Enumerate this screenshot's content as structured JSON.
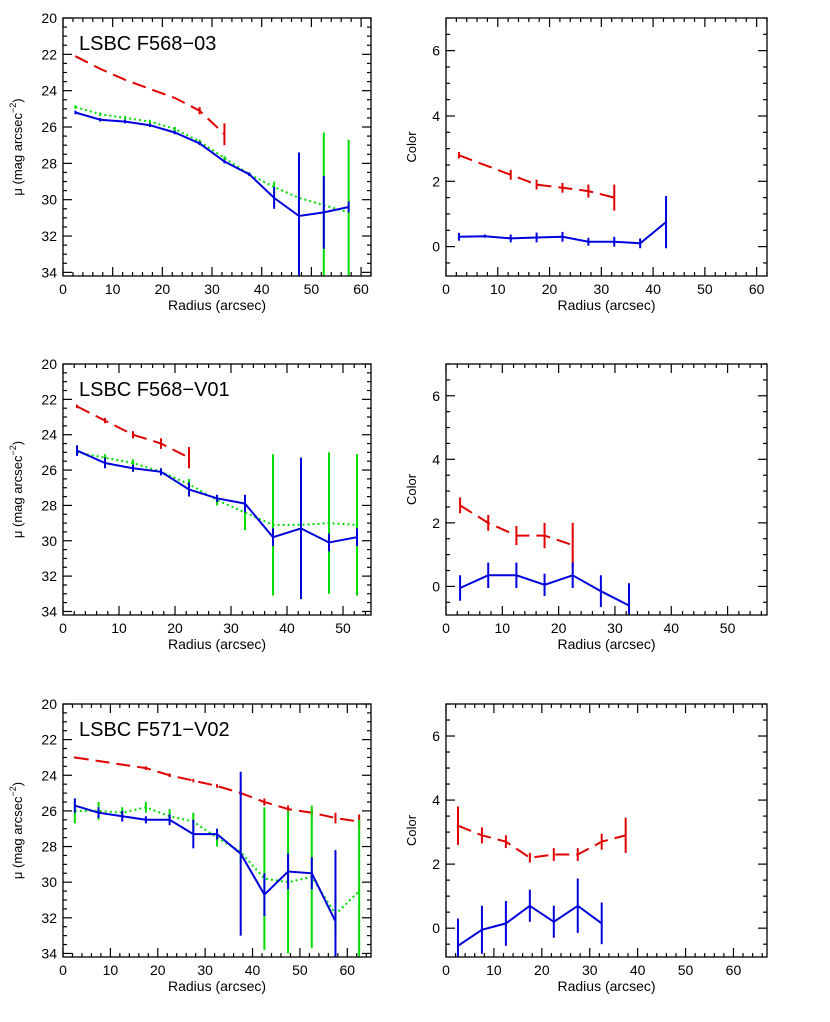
{
  "colors": {
    "red": "#e00000",
    "green": "#00dd00",
    "blue": "#0000dd",
    "axis": "#000000"
  },
  "chart_data": [
    {
      "type": "line",
      "kind": "sb",
      "title": "LSBC F568−03",
      "xlabel": "Radius (arcsec)",
      "ylabel": "μ (mag arcsec",
      "ylabel_sup": "−2",
      "ylabel_end": ")",
      "xlim": [
        0,
        62
      ],
      "ylim": [
        34.2,
        20
      ],
      "xticks": [
        0,
        10,
        20,
        30,
        40,
        50,
        60
      ],
      "yticks": [
        20,
        22,
        24,
        26,
        28,
        30,
        32,
        34
      ],
      "series": [
        {
          "color": "red",
          "style": "dash",
          "x": [
            2.5,
            7.5,
            12.5,
            17.5,
            22.5,
            27.5,
            32.5
          ],
          "y": [
            22.1,
            22.8,
            23.4,
            23.9,
            24.4,
            25.1,
            26.4
          ],
          "err": [
            0,
            0,
            0,
            0,
            0,
            0.2,
            0.6
          ]
        },
        {
          "color": "green",
          "style": "dot",
          "x": [
            2.5,
            7.5,
            12.5,
            17.5,
            22.5,
            27.5,
            32.5,
            37.5,
            42.5,
            47.5,
            52.5,
            57.5
          ],
          "y": [
            24.9,
            25.3,
            25.5,
            25.7,
            26.1,
            26.8,
            27.7,
            28.6,
            29.3,
            29.9,
            30.3,
            30.7
          ],
          "err": [
            0.1,
            0.1,
            0.1,
            0.1,
            0.1,
            0.1,
            0.1,
            0.1,
            0.3,
            0.5,
            4,
            4
          ]
        },
        {
          "color": "blue",
          "style": "solid",
          "x": [
            2.5,
            7.5,
            12.5,
            17.5,
            22.5,
            27.5,
            32.5,
            37.5,
            42.5,
            47.5,
            52.5,
            57.5
          ],
          "y": [
            25.2,
            25.6,
            25.7,
            25.9,
            26.3,
            26.9,
            27.9,
            28.6,
            29.9,
            30.9,
            30.7,
            30.4
          ],
          "err": [
            0.1,
            0.1,
            0.1,
            0.1,
            0.1,
            0.1,
            0.1,
            0.1,
            0.6,
            3.5,
            2,
            0.3
          ]
        }
      ]
    },
    {
      "type": "line",
      "kind": "color",
      "title": "",
      "xlabel": "Radius (arcsec)",
      "ylabel": "Color",
      "xlim": [
        0,
        62
      ],
      "ylim": [
        -0.9,
        7
      ],
      "xticks": [
        0,
        10,
        20,
        30,
        40,
        50,
        60
      ],
      "yticks": [
        0,
        2,
        4,
        6
      ],
      "series": [
        {
          "color": "red",
          "style": "dash",
          "x": [
            2.5,
            12.5,
            17.5,
            22.5,
            27.5,
            32.5
          ],
          "y": [
            2.8,
            2.2,
            1.9,
            1.8,
            1.7,
            1.5
          ],
          "err": [
            0.1,
            0.15,
            0.15,
            0.15,
            0.2,
            0.4
          ]
        },
        {
          "color": "blue",
          "style": "solid",
          "x": [
            2.5,
            7.5,
            12.5,
            17.5,
            22.5,
            27.5,
            32.5,
            37.5,
            42.5
          ],
          "y": [
            0.3,
            0.32,
            0.25,
            0.28,
            0.3,
            0.15,
            0.15,
            0.1,
            0.75
          ],
          "err": [
            0.12,
            0.05,
            0.12,
            0.15,
            0.15,
            0.12,
            0.15,
            0.15,
            0.8
          ]
        }
      ]
    },
    {
      "type": "line",
      "kind": "sb",
      "title": "LSBC F568−V01",
      "xlabel": "Radius (arcsec)",
      "ylabel": "μ (mag arcsec",
      "ylabel_sup": "−2",
      "ylabel_end": ")",
      "xlim": [
        0,
        55
      ],
      "ylim": [
        34.2,
        20
      ],
      "xticks": [
        0,
        10,
        20,
        30,
        40,
        50
      ],
      "yticks": [
        20,
        22,
        24,
        26,
        28,
        30,
        32,
        34
      ],
      "series": [
        {
          "color": "red",
          "style": "dash",
          "x": [
            2.5,
            7.5,
            12.5,
            17.5,
            22.5
          ],
          "y": [
            22.4,
            23.2,
            24.0,
            24.5,
            25.3
          ],
          "err": [
            0.1,
            0.15,
            0.2,
            0.3,
            0.6
          ]
        },
        {
          "color": "green",
          "style": "dot",
          "x": [
            2.5,
            7.5,
            12.5,
            17.5,
            22.5,
            27.5,
            32.5,
            37.5,
            42.5,
            47.5,
            52.5
          ],
          "y": [
            25.0,
            25.3,
            25.6,
            26.1,
            26.8,
            27.7,
            28.4,
            29.1,
            29.1,
            29.0,
            29.1
          ],
          "err": [
            0.2,
            0.2,
            0.2,
            0.2,
            0.3,
            0.3,
            1,
            4,
            0.4,
            4,
            4
          ]
        },
        {
          "color": "blue",
          "style": "solid",
          "x": [
            2.5,
            7.5,
            12.5,
            17.5,
            22.5,
            27.5,
            32.5,
            37.5,
            42.5,
            47.5,
            52.5
          ],
          "y": [
            24.9,
            25.6,
            25.9,
            26.1,
            27.1,
            27.6,
            27.9,
            29.8,
            29.3,
            30.1,
            29.8
          ],
          "err": [
            0.3,
            0.3,
            0.2,
            0.2,
            0.4,
            0.2,
            0.5,
            0.5,
            4,
            0.5,
            0.5
          ]
        }
      ]
    },
    {
      "type": "line",
      "kind": "color",
      "title": "",
      "xlabel": "Radius (arcsec)",
      "ylabel": "Color",
      "xlim": [
        0,
        57
      ],
      "ylim": [
        -0.9,
        7
      ],
      "xticks": [
        0,
        10,
        20,
        30,
        40,
        50
      ],
      "yticks": [
        0,
        2,
        4,
        6
      ],
      "series": [
        {
          "color": "red",
          "style": "dash",
          "x": [
            2.5,
            7.5,
            12.5,
            17.5,
            22.5
          ],
          "y": [
            2.55,
            2.0,
            1.6,
            1.6,
            1.3
          ],
          "err": [
            0.25,
            0.25,
            0.3,
            0.4,
            0.7
          ]
        },
        {
          "color": "blue",
          "style": "solid",
          "x": [
            2.5,
            7.5,
            12.5,
            17.5,
            22.5,
            27.5,
            32.5
          ],
          "y": [
            -0.05,
            0.35,
            0.35,
            0.05,
            0.35,
            -0.15,
            -0.6
          ],
          "err": [
            0.4,
            0.4,
            0.4,
            0.35,
            0.4,
            0.5,
            0.7
          ]
        }
      ]
    },
    {
      "type": "line",
      "kind": "sb",
      "title": "LSBC F571−V02",
      "xlabel": "Radius (arcsec)",
      "ylabel": "μ (mag arcsec",
      "ylabel_sup": "−2",
      "ylabel_end": ")",
      "xlim": [
        0,
        65
      ],
      "ylim": [
        34.2,
        20
      ],
      "xticks": [
        0,
        10,
        20,
        30,
        40,
        50,
        60
      ],
      "yticks": [
        20,
        22,
        24,
        26,
        28,
        30,
        32,
        34
      ],
      "series": [
        {
          "color": "red",
          "style": "dash",
          "x": [
            2.5,
            7.5,
            12.5,
            17.5,
            22.5,
            27.5,
            32.5,
            37.5,
            42.5,
            47.5,
            52.5,
            57.5,
            62.5
          ],
          "y": [
            23.0,
            23.2,
            23.4,
            23.6,
            24.0,
            24.3,
            24.6,
            25.0,
            25.5,
            25.9,
            26.1,
            26.4,
            26.6
          ],
          "err": [
            0.05,
            0.05,
            0.05,
            0.1,
            0.1,
            0.1,
            0.1,
            0.15,
            0.2,
            0.2,
            0.25,
            0.3,
            0.4
          ]
        },
        {
          "color": "green",
          "style": "dot",
          "x": [
            2.5,
            7.5,
            12.5,
            17.5,
            22.5,
            27.5,
            32.5,
            37.5,
            42.5,
            47.5,
            52.5,
            57.5,
            62.5
          ],
          "y": [
            26.0,
            26.0,
            26.1,
            25.8,
            26.3,
            26.6,
            27.5,
            28.3,
            29.8,
            30.0,
            29.7,
            31.8,
            30.5
          ],
          "err": [
            0.7,
            0.5,
            0.3,
            0.3,
            0.4,
            0.5,
            0.5,
            0.6,
            4,
            4,
            4,
            1,
            4
          ]
        },
        {
          "color": "blue",
          "style": "solid",
          "x": [
            2.5,
            7.5,
            12.5,
            17.5,
            22.5,
            27.5,
            32.5,
            37.5,
            42.5,
            47.5,
            52.5,
            57.5
          ],
          "y": [
            25.7,
            26.1,
            26.3,
            26.5,
            26.5,
            27.3,
            27.3,
            28.4,
            30.7,
            29.4,
            29.5,
            32.2
          ],
          "err": [
            0.4,
            0.3,
            0.3,
            0.2,
            0.3,
            0.8,
            0.3,
            4.6,
            1.2,
            1,
            0.9,
            4
          ]
        }
      ]
    },
    {
      "type": "line",
      "kind": "color",
      "title": "",
      "xlabel": "Radius (arcsec)",
      "ylabel": "Color",
      "xlim": [
        0,
        67
      ],
      "ylim": [
        -0.9,
        7
      ],
      "xticks": [
        0,
        10,
        20,
        30,
        40,
        50,
        60
      ],
      "yticks": [
        0,
        2,
        4,
        6
      ],
      "series": [
        {
          "color": "red",
          "style": "dash",
          "x": [
            2.5,
            7.5,
            12.5,
            17.5,
            22.5,
            27.5,
            32.5,
            37.5
          ],
          "y": [
            3.2,
            2.9,
            2.7,
            2.2,
            2.3,
            2.3,
            2.7,
            2.9
          ],
          "err": [
            0.6,
            0.25,
            0.2,
            0.15,
            0.2,
            0.2,
            0.25,
            0.55
          ]
        },
        {
          "color": "blue",
          "style": "solid",
          "x": [
            2.5,
            7.5,
            12.5,
            17.5,
            22.5,
            27.5,
            32.5
          ],
          "y": [
            -0.55,
            -0.05,
            0.15,
            0.7,
            0.2,
            0.7,
            0.15
          ],
          "err": [
            0.85,
            0.75,
            0.7,
            0.5,
            0.5,
            0.85,
            0.65
          ]
        }
      ]
    }
  ]
}
